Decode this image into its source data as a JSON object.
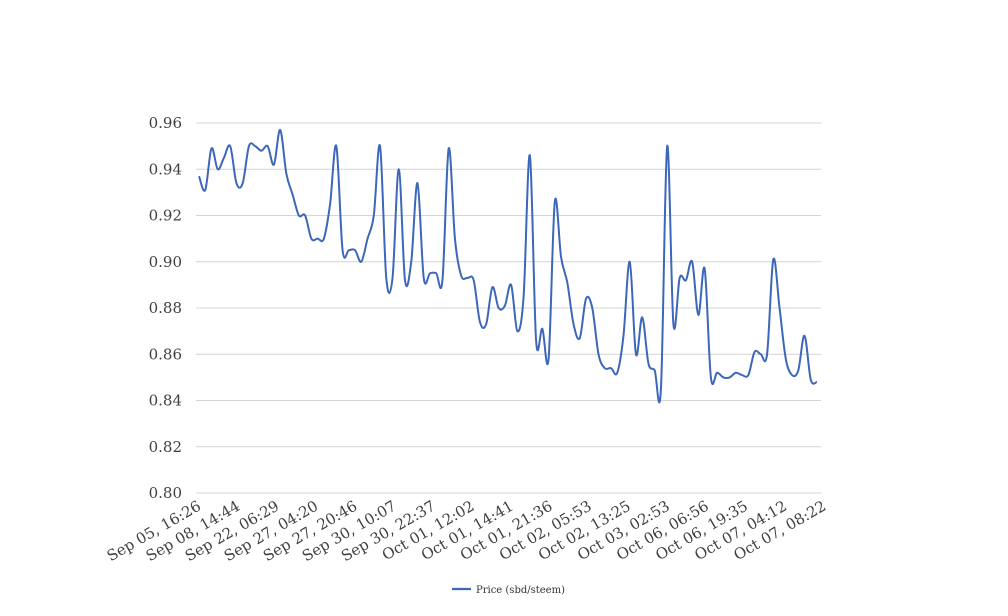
{
  "chart_data": {
    "type": "line",
    "title": "",
    "xlabel": "",
    "ylabel": "",
    "ylim": [
      0.8,
      0.96
    ],
    "yticks": [
      0.8,
      0.82,
      0.84,
      0.86,
      0.88,
      0.9,
      0.92,
      0.94,
      0.96
    ],
    "ytick_labels": [
      "0.80",
      "0.82",
      "0.84",
      "0.86",
      "0.88",
      "0.90",
      "0.92",
      "0.94",
      "0.96"
    ],
    "grid": "horizontal",
    "legend_position": "bottom-center",
    "x_tick_labels": [
      "Sep 05, 16:26",
      "Sep 08, 14:44",
      "Sep 22, 06:29",
      "Sep 27, 04:20",
      "Sep 27, 20:46",
      "Sep 30, 10:07",
      "Sep 30, 22:37",
      "Oct 01, 12:02",
      "Oct 01, 14:41",
      "Oct 01, 21:36",
      "Oct 02, 05:53",
      "Oct 02, 13:25",
      "Oct 03, 02:53",
      "Oct 06, 06:56",
      "Oct 06, 19:35",
      "Oct 07, 04:12",
      "Oct 07, 08:22"
    ],
    "series": [
      {
        "name": "Price (sbd/steem)",
        "color": "#3d67b8",
        "values": [
          0.937,
          0.931,
          0.949,
          0.94,
          0.945,
          0.95,
          0.934,
          0.934,
          0.95,
          0.95,
          0.948,
          0.95,
          0.942,
          0.957,
          0.938,
          0.929,
          0.92,
          0.92,
          0.91,
          0.91,
          0.91,
          0.925,
          0.95,
          0.905,
          0.905,
          0.905,
          0.9,
          0.91,
          0.92,
          0.95,
          0.893,
          0.893,
          0.94,
          0.892,
          0.9,
          0.934,
          0.893,
          0.895,
          0.895,
          0.892,
          0.949,
          0.91,
          0.894,
          0.893,
          0.892,
          0.874,
          0.873,
          0.889,
          0.88,
          0.881,
          0.89,
          0.87,
          0.885,
          0.946,
          0.866,
          0.871,
          0.858,
          0.926,
          0.902,
          0.891,
          0.873,
          0.867,
          0.884,
          0.88,
          0.86,
          0.854,
          0.854,
          0.852,
          0.868,
          0.9,
          0.86,
          0.876,
          0.856,
          0.853,
          0.845,
          0.95,
          0.873,
          0.893,
          0.892,
          0.9,
          0.877,
          0.897,
          0.85,
          0.852,
          0.85,
          0.85,
          0.852,
          0.851,
          0.851,
          0.861,
          0.86,
          0.86,
          0.901,
          0.88,
          0.858,
          0.851,
          0.853,
          0.868,
          0.849,
          0.848
        ]
      }
    ]
  }
}
